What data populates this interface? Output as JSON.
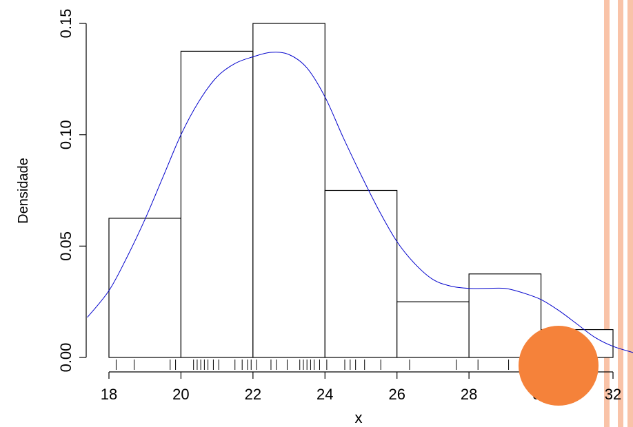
{
  "decor": {
    "stripe_color": "#f9c3a8",
    "dot_color": "#f5823a"
  },
  "chart_data": {
    "type": "histogram",
    "title": "",
    "xlabel": "x",
    "ylabel": "Densidade",
    "xlim": [
      17.5,
      32.5
    ],
    "ylim": [
      0,
      0.15
    ],
    "xticks": [
      18,
      20,
      22,
      24,
      26,
      28,
      30,
      32
    ],
    "xtick_labels": [
      "18",
      "20",
      "22",
      "24",
      "26",
      "28",
      "30",
      "32"
    ],
    "yticks": [
      0.0,
      0.05,
      0.1,
      0.15
    ],
    "ytick_labels": [
      "0.00",
      "0.05",
      "0.10",
      "0.15"
    ],
    "grid": false,
    "histogram": {
      "breaks": [
        18,
        20,
        22,
        24,
        26,
        28,
        30,
        32
      ],
      "density": [
        0.0625,
        0.1375,
        0.15,
        0.075,
        0.025,
        0.0375,
        0.0125
      ],
      "fill": "#ffffff",
      "edge_color": "#000000"
    },
    "density_curve": {
      "color": "#0000cc",
      "x": [
        17.4,
        18.0,
        18.5,
        19.0,
        19.5,
        20.0,
        20.5,
        21.0,
        21.5,
        22.0,
        22.5,
        23.0,
        23.5,
        24.0,
        24.5,
        25.0,
        25.5,
        26.0,
        26.5,
        27.0,
        27.5,
        28.0,
        28.5,
        29.0,
        29.5,
        30.0,
        30.5,
        31.0,
        31.5,
        32.0,
        32.6
      ],
      "y": [
        0.018,
        0.03,
        0.045,
        0.062,
        0.081,
        0.1,
        0.115,
        0.126,
        0.132,
        0.135,
        0.137,
        0.136,
        0.13,
        0.117,
        0.099,
        0.082,
        0.066,
        0.052,
        0.042,
        0.035,
        0.032,
        0.031,
        0.031,
        0.031,
        0.029,
        0.026,
        0.021,
        0.015,
        0.009,
        0.005,
        0.002
      ]
    },
    "rug": {
      "x": [
        18.2,
        18.7,
        19.7,
        19.85,
        20.35,
        20.45,
        20.55,
        20.65,
        20.75,
        20.9,
        21.05,
        21.5,
        21.7,
        21.85,
        21.95,
        22.1,
        22.5,
        22.65,
        22.95,
        23.3,
        23.4,
        23.5,
        23.6,
        23.7,
        23.85,
        24.05,
        24.55,
        24.7,
        24.85,
        25.1,
        25.55,
        26.35,
        27.65,
        28.25,
        29.1,
        29.85,
        30.15
      ]
    }
  }
}
